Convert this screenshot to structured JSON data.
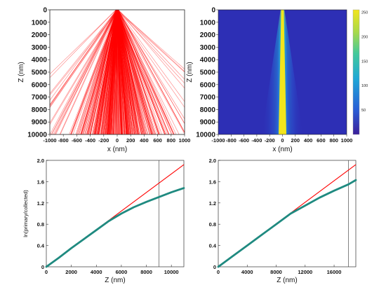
{
  "chart_data": [
    {
      "panel": "top-left",
      "type": "line",
      "description": "beam trajectories",
      "xlabel": "x (nm)",
      "ylabel": "Z (nm)",
      "xlim": [
        -1000,
        1000
      ],
      "ylim": [
        10000,
        0
      ],
      "x_ticks": [
        "-1000",
        "-800",
        "-600",
        "-400",
        "-200",
        "0",
        "200",
        "400",
        "600",
        "800",
        "1000"
      ],
      "y_ticks": [
        "0",
        "1000",
        "2000",
        "3000",
        "4000",
        "5000",
        "6000",
        "7000",
        "8000",
        "9000",
        "10000"
      ],
      "line_color": "#ff0000",
      "source_width_nm": 40
    },
    {
      "panel": "top-right",
      "type": "heatmap",
      "xlabel": "x (nm)",
      "ylabel": "Z (nm)",
      "xlim": [
        -1000,
        1000
      ],
      "ylim": [
        10000,
        0
      ],
      "x_ticks": [
        "-1000",
        "-800",
        "-600",
        "-400",
        "-200",
        "0",
        "200",
        "400",
        "600",
        "800",
        "1000"
      ],
      "y_ticks": [
        "0",
        "1000",
        "2000",
        "3000",
        "4000",
        "5000",
        "6000",
        "7000",
        "8000",
        "9000",
        "10000"
      ],
      "colorbar_ticks": [
        "250",
        "200",
        "150",
        "100",
        "50"
      ],
      "colorbar_range": [
        0,
        255
      ],
      "colormap": [
        "#3b1f9a",
        "#2a5fd6",
        "#1fa8d6",
        "#43c99a",
        "#a7d94a",
        "#f2e51c"
      ]
    },
    {
      "panel": "bottom-left",
      "type": "line",
      "xlabel": "Z (nm)",
      "ylabel": "ln(primary/collected)",
      "xlim": [
        0,
        11000
      ],
      "ylim": [
        0,
        2.0
      ],
      "x_ticks": [
        "0",
        "2000",
        "4000",
        "6000",
        "8000",
        "10000"
      ],
      "x_tick_values": [
        0,
        2000,
        4000,
        6000,
        8000,
        10000
      ],
      "y_ticks": [
        "0",
        "0.4",
        "0.8",
        "1.2",
        "1.6",
        "2.0"
      ],
      "y_tick_values": [
        0,
        0.4,
        0.8,
        1.2,
        1.6,
        2.0
      ],
      "fit_line": {
        "color": "#ff0000",
        "x": [
          0,
          11000
        ],
        "y": [
          0,
          1.92
        ]
      },
      "data_color": "#1f8a80",
      "data_x": [
        0,
        1000,
        2000,
        3000,
        4000,
        5000,
        6000,
        7000,
        8000,
        9000,
        10000,
        11000
      ],
      "data_y": [
        0,
        0.17,
        0.35,
        0.52,
        0.69,
        0.86,
        1.0,
        1.12,
        1.22,
        1.31,
        1.4,
        1.48
      ],
      "vline_x": 9000
    },
    {
      "panel": "bottom-right",
      "type": "line",
      "xlabel": "Z (nm)",
      "ylabel": "",
      "xlim": [
        0,
        19000
      ],
      "ylim": [
        0,
        2.0
      ],
      "x_ticks": [
        "0",
        "4000",
        "8000",
        "12000",
        "16000"
      ],
      "x_tick_values": [
        0,
        4000,
        8000,
        12000,
        16000
      ],
      "y_ticks": [
        "0",
        "0.4",
        "0.8",
        "1.2",
        "1.6",
        "2.0"
      ],
      "y_tick_values": [
        0,
        0.4,
        0.8,
        1.2,
        1.6,
        2.0
      ],
      "fit_line": {
        "color": "#ff0000",
        "x": [
          0,
          19000
        ],
        "y": [
          0,
          1.92
        ]
      },
      "data_color": "#1f8a80",
      "data_x": [
        0,
        2000,
        4000,
        6000,
        8000,
        10000,
        12000,
        14000,
        16000,
        18000,
        19000
      ],
      "data_y": [
        0,
        0.2,
        0.4,
        0.6,
        0.8,
        1.0,
        1.15,
        1.3,
        1.43,
        1.55,
        1.63
      ],
      "vline_x": 18000
    }
  ]
}
